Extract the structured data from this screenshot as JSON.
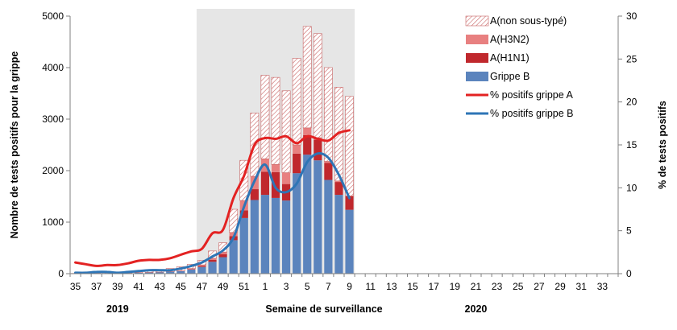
{
  "chart_data": {
    "type": "bar",
    "title": "",
    "xlabel": "Semaine de surveillance",
    "ylabel": "Nombre de tests positifs pour la grippe",
    "y2label": "% de tests positifs",
    "ylim": [
      0,
      5000
    ],
    "y2lim": [
      0,
      30
    ],
    "yticks": [
      0,
      1000,
      2000,
      3000,
      4000,
      5000
    ],
    "y2ticks": [
      0,
      5,
      10,
      15,
      20,
      25,
      30
    ],
    "grid": false,
    "legend_position": "top-right",
    "stacked": true,
    "highlight_period": {
      "from": "47",
      "to": "9"
    },
    "year_labels": [
      {
        "text": "2019",
        "under": "39"
      },
      {
        "text": "2020",
        "under": "21"
      }
    ],
    "categories": [
      "35",
      "36",
      "37",
      "38",
      "39",
      "40",
      "41",
      "42",
      "43",
      "44",
      "45",
      "46",
      "47",
      "48",
      "49",
      "50",
      "51",
      "52",
      "1",
      "2",
      "3",
      "4",
      "5",
      "6",
      "7",
      "8",
      "9",
      "10",
      "11",
      "12",
      "13",
      "14",
      "15",
      "16",
      "17",
      "18",
      "19",
      "20",
      "21",
      "22",
      "23",
      "24",
      "25",
      "26",
      "27",
      "28",
      "29",
      "30",
      "31",
      "32",
      "33",
      "34"
    ],
    "tick_labels": [
      "35",
      "37",
      "39",
      "41",
      "43",
      "45",
      "47",
      "49",
      "51",
      "1",
      "3",
      "5",
      "7",
      "9",
      "11",
      "13",
      "15",
      "17",
      "19",
      "21",
      "23",
      "25",
      "27",
      "29",
      "31",
      "33"
    ],
    "bar_series": [
      {
        "name": "Grippe B",
        "color": "#5b84bd",
        "values": [
          0,
          5,
          8,
          5,
          10,
          15,
          20,
          25,
          30,
          40,
          50,
          80,
          130,
          230,
          320,
          650,
          1080,
          1430,
          1530,
          1470,
          1420,
          1950,
          2310,
          2200,
          1820,
          1530,
          1240
        ]
      },
      {
        "name": "A(H1N1)",
        "color": "#c0282d",
        "values": [
          0,
          0,
          0,
          0,
          0,
          0,
          0,
          0,
          0,
          0,
          0,
          10,
          20,
          40,
          60,
          80,
          150,
          210,
          450,
          500,
          320,
          380,
          380,
          400,
          330,
          250,
          260
        ]
      },
      {
        "name": "A(H3N2)",
        "color": "#e88080",
        "values": [
          0,
          0,
          0,
          0,
          0,
          0,
          0,
          0,
          0,
          0,
          5,
          10,
          20,
          30,
          40,
          70,
          190,
          250,
          250,
          150,
          220,
          170,
          140,
          40,
          30,
          20,
          10
        ]
      },
      {
        "name": "A(non sous-typé)",
        "color": "#c86464",
        "pattern": "hatch",
        "values": [
          5,
          5,
          10,
          15,
          20,
          15,
          30,
          40,
          50,
          60,
          80,
          80,
          90,
          140,
          180,
          450,
          780,
          1230,
          1620,
          1690,
          1590,
          1680,
          1970,
          2020,
          1820,
          1820,
          1930
        ]
      }
    ],
    "line_series": [
      {
        "name": "% positifs grippe A",
        "color": "#e32222",
        "values": [
          1.3,
          1.1,
          0.9,
          1.0,
          1.0,
          1.2,
          1.5,
          1.6,
          1.6,
          1.8,
          2.2,
          2.6,
          2.9,
          4.7,
          5.1,
          8.8,
          11.4,
          15.0,
          15.8,
          15.7,
          16.0,
          15.2,
          16.0,
          15.7,
          15.5,
          16.4,
          16.7
        ]
      },
      {
        "name": "% positifs grippe B",
        "color": "#2e75b6",
        "values": [
          0.1,
          0.1,
          0.2,
          0.2,
          0.1,
          0.2,
          0.3,
          0.4,
          0.4,
          0.4,
          0.6,
          0.9,
          1.3,
          2.0,
          2.7,
          4.2,
          7.8,
          10.8,
          12.7,
          10.0,
          9.5,
          10.5,
          13.0,
          14.0,
          13.5,
          11.5,
          8.8
        ]
      }
    ],
    "legend": [
      {
        "label": "A(non sous-typé)",
        "kind": "hatch",
        "color": "#c86464"
      },
      {
        "label": "A(H3N2)",
        "kind": "box",
        "color": "#e88080"
      },
      {
        "label": "A(H1N1)",
        "kind": "box",
        "color": "#c0282d"
      },
      {
        "label": "Grippe B",
        "kind": "box",
        "color": "#5b84bd"
      },
      {
        "label": "% positifs grippe A",
        "kind": "line",
        "color": "#e32222"
      },
      {
        "label": "% positifs grippe B",
        "kind": "line",
        "color": "#2e75b6"
      }
    ]
  }
}
